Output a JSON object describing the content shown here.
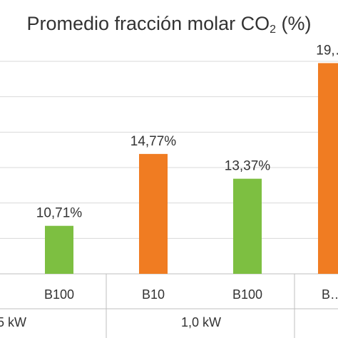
{
  "chart_data": {
    "type": "bar",
    "title": {
      "main": "Promedio fracción molar CO",
      "sub": "2",
      "suffix": " (%)"
    },
    "ylabel": "",
    "ylim": [
      8,
      20
    ],
    "y_gridlines": [
      8,
      10,
      12,
      14,
      16,
      18,
      20
    ],
    "grid": true,
    "bars": [
      {
        "category": "B100",
        "group": "…5 kW",
        "value": 10.71,
        "label": "10,71%",
        "color": "#7dbf41"
      },
      {
        "category": "B10",
        "group": "1,0 kW",
        "value": 14.77,
        "label": "14,77%",
        "color": "#f07c22"
      },
      {
        "category": "B100",
        "group": "1,0 kW",
        "value": 13.37,
        "label": "13,37%",
        "color": "#7dbf41"
      },
      {
        "category": "B…",
        "group": "…",
        "value": 19.9,
        "label": "19,…",
        "color": "#f07c22"
      }
    ],
    "groups": [
      {
        "label": "5 kW"
      },
      {
        "label": "1,0 kW"
      }
    ]
  }
}
